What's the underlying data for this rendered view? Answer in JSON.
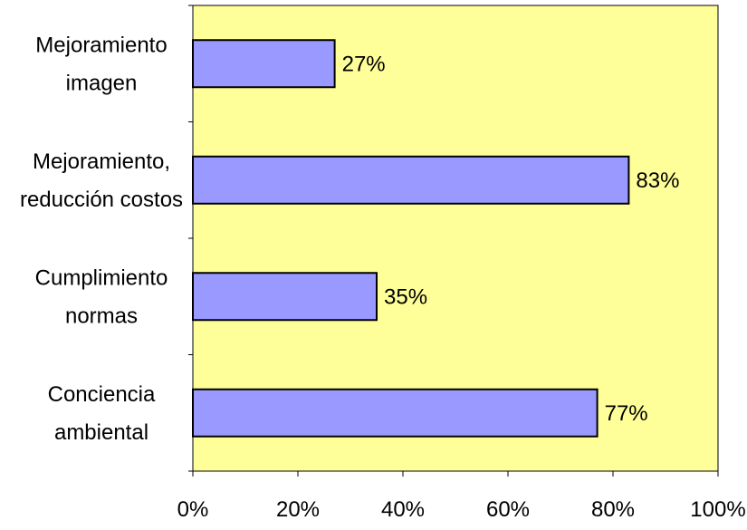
{
  "chart_data": {
    "type": "bar",
    "orientation": "horizontal",
    "categories": [
      [
        "Mejoramiento",
        "imagen"
      ],
      [
        "Mejoramiento,",
        "reducción costos"
      ],
      [
        "Cumplimiento",
        "normas"
      ],
      [
        "Conciencia",
        "ambiental"
      ]
    ],
    "values": [
      27,
      83,
      35,
      77
    ],
    "data_labels": [
      "27%",
      "83%",
      "35%",
      "77%"
    ],
    "xlim": [
      0,
      100
    ],
    "xticks": [
      0,
      20,
      40,
      60,
      80,
      100
    ],
    "xtick_labels": [
      "0%",
      "20%",
      "40%",
      "60%",
      "80%",
      "100%"
    ],
    "grid": false,
    "legend": false,
    "colors": {
      "plot_background": "#FFFF99",
      "bar_fill": "#9999FF",
      "bar_stroke": "#000000"
    }
  }
}
